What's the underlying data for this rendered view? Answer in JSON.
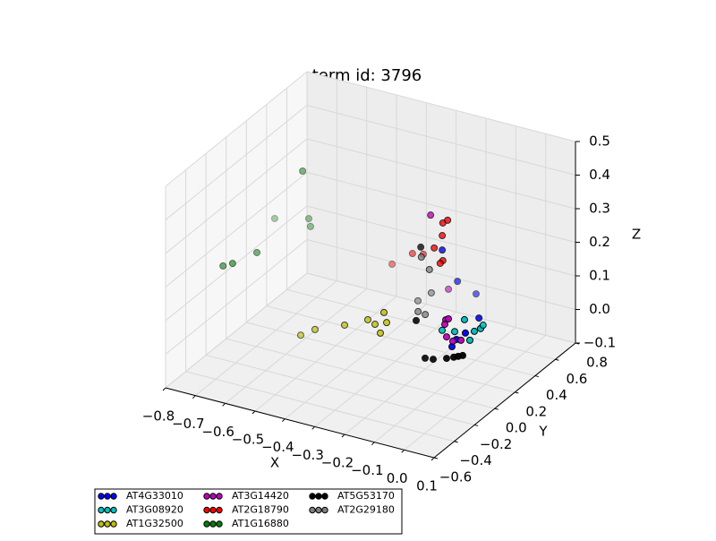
{
  "chart_data": {
    "type": "scatter3d",
    "title": "term id: 3796",
    "x_label": "X",
    "y_label": "Y",
    "z_label": "Z",
    "xlim": [
      -0.8,
      0.1
    ],
    "ylim": [
      -0.6,
      0.8
    ],
    "zlim": [
      -0.1,
      0.5
    ],
    "xticks": [
      {
        "value": -0.8,
        "label": "−0.8"
      },
      {
        "value": -0.7,
        "label": "−0.7"
      },
      {
        "value": -0.6,
        "label": "−0.6"
      },
      {
        "value": -0.5,
        "label": "−0.5"
      },
      {
        "value": -0.4,
        "label": "−0.4"
      },
      {
        "value": -0.3,
        "label": "−0.3"
      },
      {
        "value": -0.2,
        "label": "−0.2"
      },
      {
        "value": -0.1,
        "label": "−0.1"
      },
      {
        "value": 0,
        "label": "0.0"
      },
      0.1
    ],
    "yticks": [
      {
        "value": -0.6,
        "label": "−0.6"
      },
      {
        "value": -0.4,
        "label": "−0.4"
      },
      {
        "value": -0.2,
        "label": "−0.2"
      },
      {
        "value": 0,
        "label": "0.0"
      },
      0.2,
      0.4,
      0.6,
      0.8
    ],
    "zticks": [
      {
        "value": -0.1,
        "label": "−0.1"
      },
      {
        "value": 0,
        "label": "0.0"
      },
      0.1,
      0.2,
      0.3,
      0.4,
      0.5
    ],
    "grid": true,
    "legend_position": "lower left",
    "series": [
      {
        "name": "AT4G33010",
        "color": "#0000ff",
        "x": [
          -0.157,
          -0.177,
          -0.162,
          -0.034,
          -0.077,
          -0.062,
          -0.032
        ],
        "y": [
          0.24,
          0.45,
          0.59,
          0.24,
          0.1,
          0.1,
          0.1
        ],
        "z": [
          0.254,
          0.105,
          0.037,
          0.08,
          0.019,
          0.044,
          0.07
        ]
      },
      {
        "name": "AT3G08920",
        "color": "#00bfbf",
        "x": [
          -0.035,
          -0.11,
          -0.068,
          -0.017,
          -0.002,
          0.019,
          -0.02
        ],
        "y": [
          0.1,
          0.1,
          0.1,
          0.1,
          0.1,
          0.1,
          0.24
        ],
        "z": [
          0.109,
          0.06,
          0.066,
          0.052,
          0.082,
          0.095,
          0.062
        ]
      },
      {
        "name": "AT1G32500",
        "color": "#bfbf00",
        "x": [
          -0.584,
          -0.536,
          -0.437,
          -0.359,
          -0.335,
          -0.317,
          -0.305,
          -0.296
        ],
        "y": [
          0.1,
          0.1,
          0.1,
          0.1,
          0.1,
          0.1,
          0.1,
          0.1
        ],
        "z": [
          -0.064,
          -0.036,
          0.0,
          0.034,
          0.026,
          0.004,
          0.068,
          0.04
        ]
      },
      {
        "name": "AT3G14420",
        "color": "#bf00bf",
        "x": [
          -0.196,
          -0.098,
          -0.089,
          -0.101,
          -0.095,
          -0.074,
          -0.047,
          -0.231
        ],
        "y": [
          0.24,
          0.1,
          0.1,
          0.1,
          0.1,
          0.1,
          0.1,
          0.52
        ],
        "z": [
          0.349,
          0.094,
          0.099,
          0.08,
          0.044,
          0.036,
          0.045,
          0.052
        ]
      },
      {
        "name": "AT2G18790",
        "color": "#ff0000",
        "x": [
          -0.155,
          -0.139,
          -0.157,
          -0.184,
          -0.155,
          -0.164,
          -0.292,
          -0.328,
          -0.42
        ],
        "y": [
          0.24,
          0.24,
          0.24,
          0.24,
          0.24,
          0.24,
          0.45,
          0.45,
          0.52
        ],
        "z": [
          0.335,
          0.347,
          0.297,
          0.254,
          0.223,
          0.213,
          0.159,
          0.153,
          0.083
        ]
      },
      {
        "name": "AT1G16880",
        "color": "#008000",
        "x": [
          -0.797,
          -0.765,
          -0.731,
          -0.766,
          -0.625,
          -0.652,
          -0.646
        ],
        "y": [
          -0.04,
          -0.04,
          0.1,
          0.38,
          0.24,
          0.38,
          0.38
        ],
        "z": [
          0.127,
          0.142,
          0.148,
          0.173,
          0.381,
          0.199,
          0.177
        ]
      },
      {
        "name": "AT5G53170",
        "color": "#000000",
        "x": [
          -0.167,
          -0.14,
          -0.095,
          -0.071,
          -0.056,
          -0.041,
          -0.229,
          -0.197
        ],
        "y": [
          0.1,
          0.1,
          0.1,
          0.1,
          0.1,
          0.1,
          0.24,
          0.1
        ],
        "z": [
          -0.036,
          -0.033,
          -0.02,
          -0.011,
          -0.005,
          0.001,
          0.246,
          0.069
        ]
      },
      {
        "name": "AT2G29180",
        "color": "#808080",
        "x": [
          -0.227,
          -0.2,
          -0.241,
          -0.286,
          -0.214,
          -0.238
        ],
        "y": [
          0.24,
          0.24,
          0.38,
          0.38,
          0.24,
          0.24
        ],
        "z": [
          0.217,
          0.186,
          0.073,
          0.039,
          0.049,
          0.052
        ]
      }
    ]
  }
}
